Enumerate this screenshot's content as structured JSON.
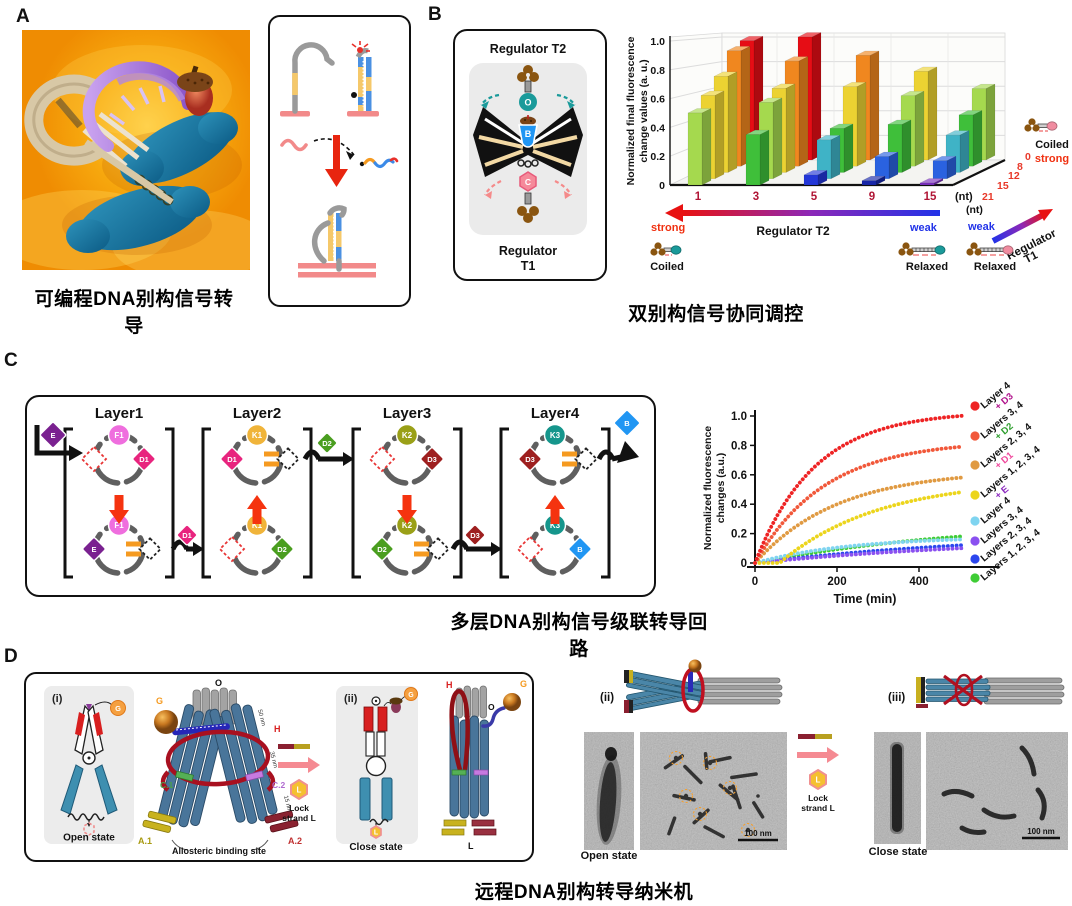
{
  "figure": {
    "panel_a": {
      "label": "A",
      "caption": "可编程DNA别构信号转导"
    },
    "panel_b": {
      "label": "B",
      "caption": "双别构信号协同调控",
      "regulator_top": "Regulator T2",
      "regulator_bottom_line1": "Regulator",
      "regulator_bottom_line2": "T1",
      "node_o": "O",
      "node_b": "B",
      "node_c": "C"
    },
    "panel_c": {
      "label": "C",
      "caption": "多层DNA别构信号级联转导回路",
      "layers": [
        "Layer1",
        "Layer2",
        "Layer3",
        "Layer4"
      ],
      "species": {
        "e": "E",
        "f1": "F1",
        "d1": "D1",
        "k1": "K1",
        "d2": "D2",
        "k2": "K2",
        "d3": "D3",
        "k3": "K3",
        "b": "B"
      }
    },
    "panel_d": {
      "label": "D",
      "caption": "远程DNA别构转导纳米机器",
      "sub_i": "(i)",
      "sub_ii": "(ii)",
      "sub_iii": "(iii)",
      "open_state": "Open state",
      "close_state": "Close state",
      "allosteric": "Allosteric binding site",
      "lock_line1": "Lock",
      "lock_line2": "strand L",
      "parts": {
        "g": "G",
        "o": "O",
        "h": "H",
        "c1": "C.1",
        "c2": "C.2",
        "a1": "A.1",
        "a2": "A.2",
        "l": "L"
      },
      "dims": {
        "d50": "50 nm",
        "d35": "35 nm",
        "d15": "15 nm"
      },
      "scale_bar": "100 nm"
    }
  },
  "chart_data": [
    {
      "type": "bar",
      "projection": "3d-grouped",
      "title": "双别构信号协同调控",
      "ylabel": "Normalized final fluorescence change values (a. u.)",
      "ylabel_lines": [
        "Normalized final fluorescence",
        "change values (a. u.)"
      ],
      "ylim": [
        0,
        1.0
      ],
      "yticks": [
        "0",
        "0.2",
        "0.4",
        "0.6",
        "0.8",
        "1.0"
      ],
      "x_axis": {
        "label": "Regulator T2",
        "categories": [
          "1",
          "3",
          "5",
          "9",
          "15"
        ],
        "unit": "(nt)",
        "left_end": "strong",
        "right_end": "weak"
      },
      "z_axis": {
        "label": "Regulator T1",
        "categories": [
          "21",
          "15",
          "12",
          "8",
          "0"
        ],
        "unit": "(nt)",
        "near_end": "weak",
        "far_end": "strong"
      },
      "value_note": "rows = Regulator T2 (1,3,5,9,15 nt); cols = Regulator T1 (21,15,12,8,0 nt)",
      "values": [
        [
          0.5,
          0.6,
          0.72,
          0.9,
          0.97
        ],
        [
          0.35,
          0.55,
          0.63,
          0.82,
          1.0
        ],
        [
          0.07,
          0.28,
          0.33,
          0.62,
          0.85
        ],
        [
          0.03,
          0.16,
          0.36,
          0.55,
          0.72
        ],
        [
          0.01,
          0.13,
          0.28,
          0.4,
          0.58
        ]
      ],
      "color_scale": [
        [
          0.93,
          "#e60d15"
        ],
        [
          0.75,
          "#f0871f"
        ],
        [
          0.6,
          "#ecd232"
        ],
        [
          0.44,
          "#a5d94e"
        ],
        [
          0.3,
          "#3fbf3a"
        ],
        [
          0.22,
          "#3fb3c6"
        ],
        [
          0.1,
          "#2a62e0"
        ],
        [
          0.05,
          "#2337d8"
        ],
        [
          0.02,
          "#1726a8"
        ],
        [
          0,
          "#7a2fbf"
        ]
      ],
      "icons": {
        "coiled_t2": "Coiled",
        "relaxed_t2": "Relaxed",
        "relaxed_t1": "Relaxed",
        "coiled_t1": "Coiled",
        "strong": "strong",
        "weak": "weak"
      }
    },
    {
      "type": "line",
      "xlabel": "Time (min)",
      "ylabel": "Normalized fluorescence changes (a.u.)",
      "ylabel_lines": [
        "Normalized fluorescence",
        "changes (a.u.)"
      ],
      "xlim": [
        0,
        520
      ],
      "xticks": [
        "0",
        "200",
        "400"
      ],
      "ylim": [
        0,
        1.05
      ],
      "yticks": [
        "0",
        "0.2",
        "0.4",
        "0.6",
        "0.8",
        "1.0"
      ],
      "series": [
        {
          "label": "Layer 4",
          "added": "+ D3",
          "added_color": "#b0128c",
          "color": "#ee2324",
          "end_value": 1.0,
          "tau": 145,
          "delay": 0
        },
        {
          "label": "Layers 3, 4",
          "added": "+ D2",
          "added_color": "#2e9e2e",
          "color": "#f1583a",
          "end_value": 0.79,
          "tau": 170,
          "delay": 0
        },
        {
          "label": "Layers 2, 3, 4",
          "added": "+ D1",
          "added_color": "#f0489c",
          "color": "#e09a42",
          "end_value": 0.58,
          "tau": 200,
          "delay": 0
        },
        {
          "label": "Layers 1, 2, 3, 4",
          "added": "+ E",
          "added_color": "#8c2bbf",
          "color": "#ecd51c",
          "end_value": 0.48,
          "tau": 240,
          "delay": 60
        },
        {
          "label": "Layer 4",
          "color": "#7fd4f0",
          "end_value": 0.16,
          "tau": 230,
          "delay": 0
        },
        {
          "label": "Layers 3, 4",
          "color": "#8a50f0",
          "end_value": 0.1,
          "tau": 650,
          "delay": 0
        },
        {
          "label": "Layers 2, 3, 4",
          "color": "#2b46ee",
          "end_value": 0.12,
          "tau": 600,
          "delay": 0
        },
        {
          "label": "Layers 1, 2, 3, 4",
          "color": "#3ecc35",
          "end_value": 0.18,
          "tau": 520,
          "delay": 0
        }
      ]
    }
  ]
}
